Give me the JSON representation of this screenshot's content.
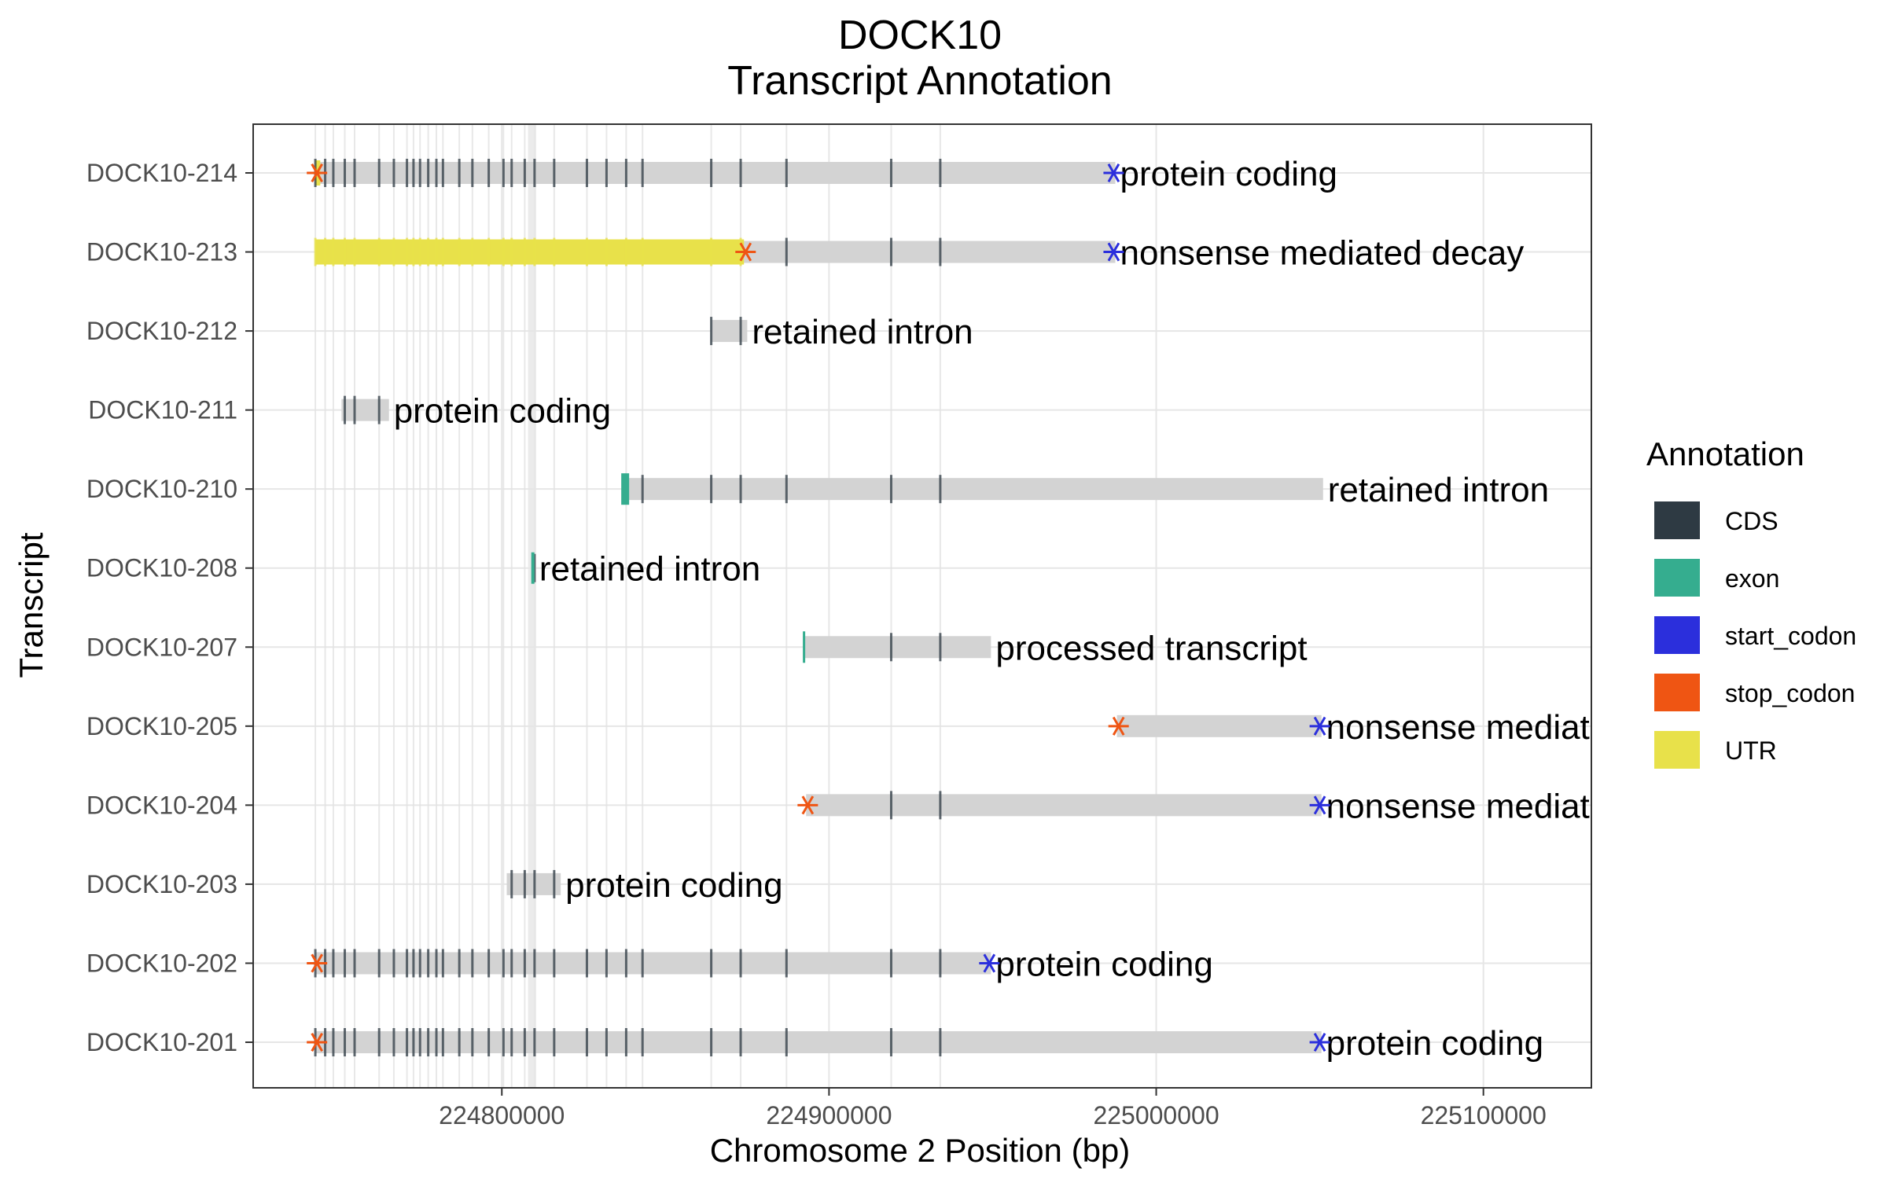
{
  "chart_data": {
    "type": "gene-track",
    "title_line1": "DOCK10",
    "title_line2": "Transcript Annotation",
    "xlabel": "Chromosome 2 Position (bp)",
    "ylabel": "Transcript",
    "xlim": [
      224724000,
      225133000
    ],
    "xticks": [
      224800000,
      224900000,
      225000000,
      225100000
    ],
    "xtick_labels": [
      "224800000",
      "224900000",
      "225000000",
      "225100000"
    ],
    "legend": {
      "title": "Annotation",
      "placement": "right",
      "items": [
        {
          "key": "CDS",
          "label": "CDS",
          "color": "#2e3a43"
        },
        {
          "key": "exon",
          "label": "exon",
          "color": "#35ad8f"
        },
        {
          "key": "start_codon",
          "label": "start_codon",
          "color": "#2b2fdc"
        },
        {
          "key": "stop_codon",
          "label": "stop_codon",
          "color": "#ef5513"
        },
        {
          "key": "UTR",
          "label": "UTR",
          "color": "#e8e14a"
        }
      ]
    },
    "colors": {
      "intron": "#d3d3d3",
      "gridline": "#e6e6e6",
      "panel_border": "#333333"
    },
    "exon_positions": [
      224743000,
      224746000,
      224748500,
      224752000,
      224755000,
      224762500,
      224767000,
      224771000,
      224773000,
      224775000,
      224777500,
      224780000,
      224782000,
      224787000,
      224791000,
      224796000,
      224800500,
      224803000,
      224807000,
      224810000,
      224816000,
      224826000,
      224832000,
      224838000,
      224843000,
      224864000,
      224873000,
      224887000,
      224919000,
      224934000
    ],
    "transcripts": [
      {
        "id": "DOCK10-214",
        "biotype": "protein coding",
        "start": 224743000,
        "end": 224987500,
        "utr": [
          [
            224743000,
            224744500
          ]
        ],
        "stop": 224743500,
        "start_codon": 224987000
      },
      {
        "id": "DOCK10-213",
        "biotype": "nonsense mediated decay",
        "start": 224743000,
        "end": 224987500,
        "utr": [
          [
            224743000,
            224874000
          ]
        ],
        "stop": 224874500,
        "start_codon": 224987000
      },
      {
        "id": "DOCK10-212",
        "biotype": "retained intron",
        "start": 224864000,
        "end": 224875000,
        "utr": [],
        "stop": null,
        "start_codon": null
      },
      {
        "id": "DOCK10-211",
        "biotype": "protein coding",
        "start": 224751000,
        "end": 224765500,
        "utr": [],
        "stop": null,
        "start_codon": null
      },
      {
        "id": "DOCK10-210",
        "biotype": "retained intron",
        "start": 224838000,
        "end": 225051000,
        "utr": [],
        "stop": null,
        "start_codon": null
      },
      {
        "id": "DOCK10-208",
        "biotype": "retained intron",
        "start": 224809000,
        "end": 224810000,
        "utr": [],
        "stop": null,
        "start_codon": null
      },
      {
        "id": "DOCK10-207",
        "biotype": "processed transcript",
        "start": 224892000,
        "end": 224949500,
        "utr": [],
        "stop": null,
        "start_codon": null
      },
      {
        "id": "DOCK10-205",
        "biotype": "nonsense mediated decay",
        "start": 224988000,
        "end": 225050500,
        "utr": [],
        "stop": 224988500,
        "start_codon": 225050000
      },
      {
        "id": "DOCK10-204",
        "biotype": "nonsense mediated decay",
        "start": 224893000,
        "end": 225050500,
        "utr": [],
        "stop": 224893500,
        "start_codon": 225050000
      },
      {
        "id": "DOCK10-203",
        "biotype": "protein coding",
        "start": 224801500,
        "end": 224818000,
        "utr": [],
        "stop": null,
        "start_codon": null
      },
      {
        "id": "DOCK10-202",
        "biotype": "protein coding",
        "start": 224743000,
        "end": 224949500,
        "utr": [],
        "stop": 224743500,
        "start_codon": 224949000
      },
      {
        "id": "DOCK10-201",
        "biotype": "protein coding",
        "start": 224743000,
        "end": 225050500,
        "utr": [],
        "stop": 224743500,
        "start_codon": 225050000
      }
    ]
  }
}
